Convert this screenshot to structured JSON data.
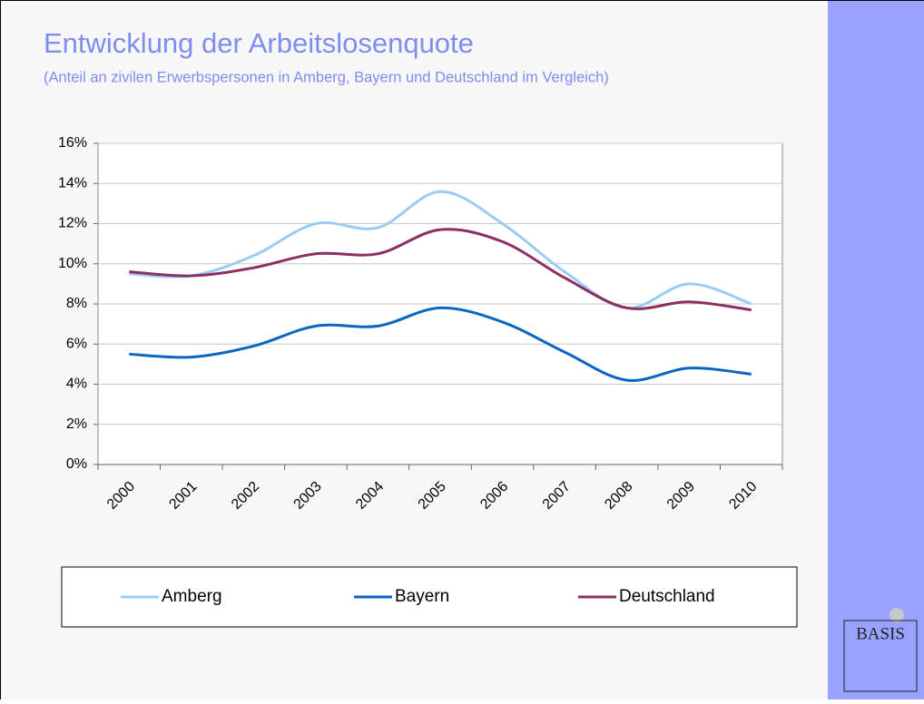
{
  "chart_data": {
    "type": "line",
    "title": "Entwicklung der Arbeitslosenquote",
    "subtitle": "(Anteil an zivilen Erwerbspersonen in Amberg, Bayern und Deutschland im Vergleich)",
    "categories": [
      "2000",
      "2001",
      "2002",
      "2003",
      "2004",
      "2005",
      "2006",
      "2007",
      "2008",
      "2009",
      "2010"
    ],
    "series": [
      {
        "name": "Amberg",
        "color": "#99ccf5",
        "values": [
          9.5,
          9.4,
          10.4,
          12.0,
          11.8,
          13.6,
          12.0,
          9.6,
          7.8,
          9.0,
          8.0
        ]
      },
      {
        "name": "Bayern",
        "color": "#0a66c2",
        "values": [
          5.5,
          5.35,
          5.9,
          6.9,
          6.9,
          7.8,
          7.1,
          5.6,
          4.2,
          4.8,
          4.5
        ]
      },
      {
        "name": "Deutschland",
        "color": "#8c2f61",
        "values": [
          9.6,
          9.4,
          9.8,
          10.5,
          10.5,
          11.7,
          11.1,
          9.3,
          7.8,
          8.1,
          7.7
        ]
      }
    ],
    "ylim": [
      0,
      16
    ],
    "yticks": [
      {
        "value": 0,
        "label": "0%"
      },
      {
        "value": 2,
        "label": "2%"
      },
      {
        "value": 4,
        "label": "4%"
      },
      {
        "value": 6,
        "label": "6%"
      },
      {
        "value": 8,
        "label": "8%"
      },
      {
        "value": 10,
        "label": "10%"
      },
      {
        "value": 12,
        "label": "12%"
      },
      {
        "value": 14,
        "label": "14%"
      },
      {
        "value": 16,
        "label": "16%"
      }
    ],
    "grid": true,
    "legend": "bottom",
    "logo": "BASIS"
  }
}
